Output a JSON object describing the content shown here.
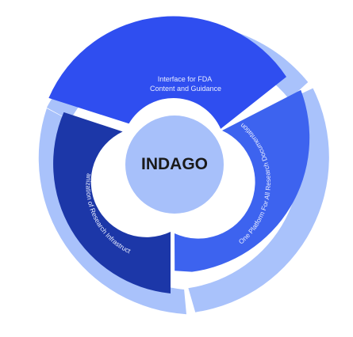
{
  "diagram": {
    "center_label": "INDAGO",
    "segments": {
      "top": {
        "lines": [
          "Interface for FDA",
          "Content and Guidance"
        ]
      },
      "right": {
        "text": "One Platform For All Research Documentation"
      },
      "left": {
        "text": "Organization of Research Infrastructure"
      }
    },
    "colors": {
      "outer_ring": "#a9c2fb",
      "top_segment": "#2f4ef0",
      "right_segment": "#3d63ef",
      "left_segment": "#1c37a8",
      "center_circle": "#a7c0fa",
      "segment_text": "#e8edff",
      "center_text": "#1a1a1a"
    }
  }
}
